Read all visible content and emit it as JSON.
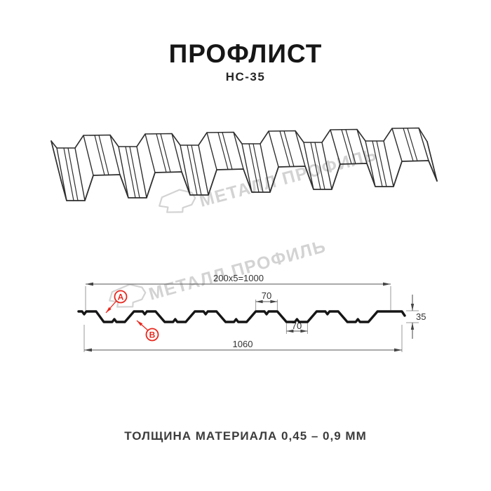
{
  "header": {
    "title": "ПРОФЛИСТ",
    "subtitle": "НС-35"
  },
  "watermark": {
    "text": "МЕТАЛЛ ПРОФИЛЬ",
    "color": "#d3d3d3"
  },
  "cross_section": {
    "dim_top": "200x5=1000",
    "dim_bottom": "1060",
    "dim_flat_top": "70",
    "dim_flat_bottom": "70",
    "dim_height": "35",
    "label_a": "A",
    "label_b": "B",
    "accent_red": "#e8271d",
    "line_color": "#151515"
  },
  "footer": {
    "caption": "ТОЛЩИНА МАТЕРИАЛА 0,45 – 0,9 ММ"
  }
}
